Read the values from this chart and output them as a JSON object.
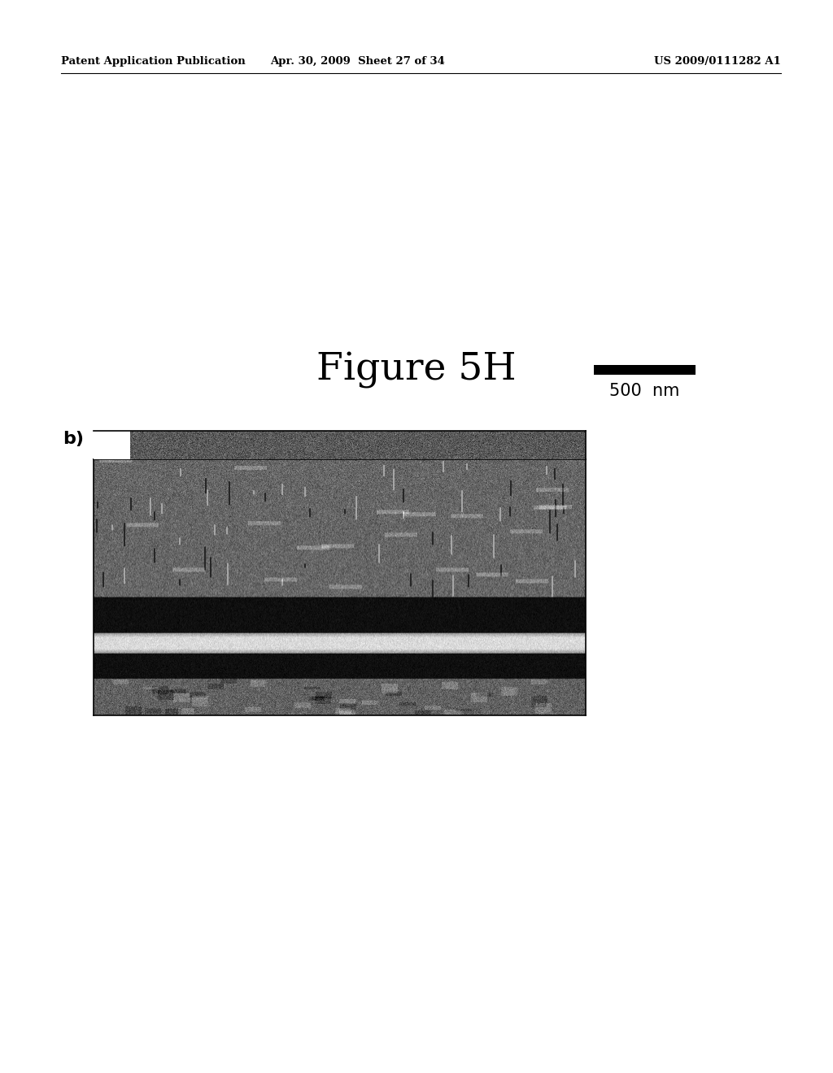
{
  "header_left": "Patent Application Publication",
  "header_mid": "Apr. 30, 2009  Sheet 27 of 34",
  "header_right": "US 2009/0111282 A1",
  "figure_title": "Figure 5H",
  "label_b": "b)",
  "scale_text": "500  nm",
  "bg_color": "#ffffff",
  "header_fontsize": 9.5,
  "title_fontsize": 34,
  "label_fontsize": 16,
  "scale_fontsize": 15
}
